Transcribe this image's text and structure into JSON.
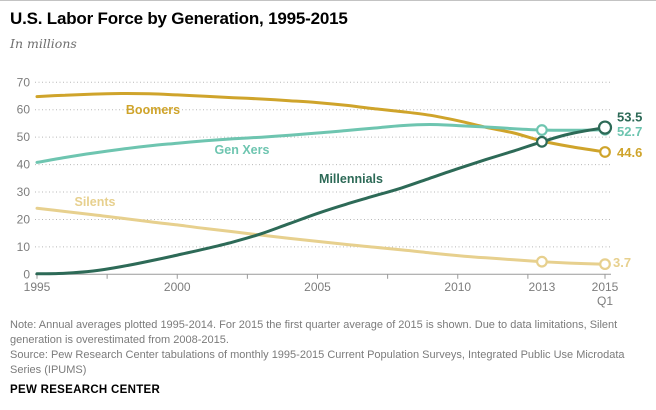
{
  "header": {
    "title": "U.S. Labor Force by Generation, 1995-2015",
    "subtitle": "In millions"
  },
  "chart_data": {
    "type": "line",
    "title": "U.S. Labor Force by Generation, 1995-2015",
    "units_label": "In millions",
    "grid": "horizontal dotted",
    "legend_position": "inline series labels",
    "ylim": [
      0,
      70
    ],
    "y_axis": {
      "ticks": [
        0,
        10,
        20,
        30,
        40,
        50,
        60,
        70
      ]
    },
    "x_axis": {
      "ticks": [
        {
          "year": 1995,
          "label": "1995"
        },
        {
          "year": 2000,
          "label": "2000"
        },
        {
          "year": 2005,
          "label": "2005"
        },
        {
          "year": 2010,
          "label": "2010"
        },
        {
          "year": 2013,
          "label": "2013"
        },
        {
          "year": 2015.25,
          "label": "2015",
          "label2": "Q1"
        }
      ],
      "minor_tick_years": [
        1995,
        1997.5,
        2000,
        2002.5,
        2005,
        2007.5,
        2010,
        2012.5,
        2015.25
      ]
    },
    "x": [
      1995,
      1996,
      1997,
      1998,
      1999,
      2000,
      2001,
      2002,
      2003,
      2004,
      2005,
      2006,
      2007,
      2008,
      2009,
      2010,
      2011,
      2012,
      2013,
      2014,
      2015.25
    ],
    "series": [
      {
        "name": "Silents",
        "color": "#e7d08e",
        "values": [
          24.1,
          22.9,
          21.7,
          20.5,
          19.2,
          18.0,
          16.7,
          15.5,
          14.3,
          13.1,
          12.0,
          10.9,
          9.9,
          8.9,
          7.8,
          6.8,
          6.0,
          5.3,
          4.6,
          4.1,
          3.7
        ],
        "end_label": "3.7",
        "marker_years": [
          2013,
          2015.25
        ]
      },
      {
        "name": "Boomers",
        "color": "#cfa42b",
        "values": [
          64.8,
          65.3,
          65.7,
          65.9,
          65.8,
          65.4,
          64.9,
          64.4,
          63.9,
          63.3,
          62.6,
          61.6,
          60.4,
          59.3,
          58.0,
          56.0,
          53.6,
          51.5,
          48.6,
          46.6,
          44.6
        ],
        "end_label": "44.6",
        "marker_years": [
          2015.25
        ]
      },
      {
        "name": "Gen Xers",
        "color": "#6ec5b0",
        "values": [
          40.8,
          42.6,
          44.2,
          45.6,
          46.8,
          47.8,
          48.7,
          49.4,
          50.0,
          50.7,
          51.5,
          52.4,
          53.3,
          54.2,
          54.6,
          54.2,
          53.7,
          53.1,
          52.6,
          52.5,
          52.7
        ],
        "end_label": "52.7",
        "marker_years": [
          2013,
          2015.25
        ]
      },
      {
        "name": "Millennials",
        "color": "#2d6a57",
        "values": [
          0.2,
          0.4,
          1.2,
          2.8,
          4.8,
          7.0,
          9.3,
          11.8,
          14.8,
          18.5,
          22.2,
          25.5,
          28.5,
          31.5,
          35.0,
          38.5,
          41.8,
          45.0,
          48.3,
          51.2,
          53.5
        ],
        "end_label": "53.5",
        "marker_years": [
          2013,
          2015.25
        ]
      }
    ]
  },
  "notes": {
    "note": "Note: Annual averages plotted 1995-2014. For 2015 the first quarter average of 2015 is shown. Due to data limitations, Silent generation is overestimated from 2008-2015.",
    "source": "Source: Pew Research Center tabulations of monthly 1995-2015 Current Population Surveys, Integrated Public Use Microdata Series (IPUMS)"
  },
  "footer": {
    "brand": "PEW RESEARCH CENTER"
  }
}
